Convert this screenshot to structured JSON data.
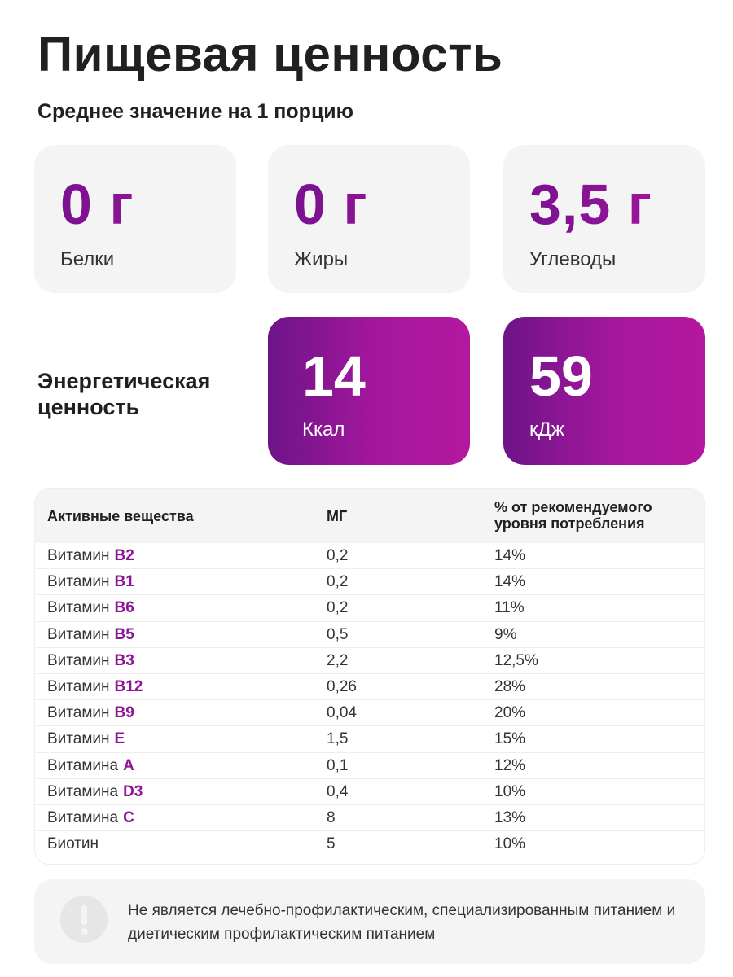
{
  "title": "Пищевая ценность",
  "subtitle": "Среднее значение на 1 порцию",
  "macros": [
    {
      "value": "0 г",
      "label": "Белки"
    },
    {
      "value": "0 г",
      "label": "Жиры"
    },
    {
      "value": "3,5 г",
      "label": "Углеводы"
    }
  ],
  "energy": {
    "label": "Энергетическая ценность",
    "kcal": {
      "value": "14",
      "unit": "Ккал"
    },
    "kj": {
      "value": "59",
      "unit": "кДж"
    }
  },
  "table": {
    "headers": [
      "Активные вещества",
      "МГ",
      "% от рекомендуемого уровня потребления"
    ],
    "rows": [
      {
        "name": "Витамин",
        "code": "B2",
        "mg": "0,2",
        "percent": "14%"
      },
      {
        "name": "Витамин",
        "code": "B1",
        "mg": "0,2",
        "percent": "14%"
      },
      {
        "name": "Витамин",
        "code": "B6",
        "mg": "0,2",
        "percent": "11%"
      },
      {
        "name": "Витамин",
        "code": "B5",
        "mg": "0,5",
        "percent": "9%"
      },
      {
        "name": "Витамин",
        "code": "B3",
        "mg": "2,2",
        "percent": "12,5%"
      },
      {
        "name": "Витамин",
        "code": "B12",
        "mg": "0,26",
        "percent": "28%"
      },
      {
        "name": "Витамин",
        "code": "B9",
        "mg": "0,04",
        "percent": "20%"
      },
      {
        "name": "Витамин",
        "code": "E",
        "mg": "1,5",
        "percent": "15%"
      },
      {
        "name": "Витамина",
        "code": "A",
        "mg": "0,1",
        "percent": "12%"
      },
      {
        "name": "Витамина",
        "code": "D3",
        "mg": "0,4",
        "percent": "10%"
      },
      {
        "name": "Витамина",
        "code": "C",
        "mg": "8",
        "percent": "13%"
      },
      {
        "name": "Биотин",
        "code": "",
        "mg": "5",
        "percent": "10%"
      }
    ]
  },
  "notice": {
    "icon": "exclamation-icon",
    "text": "Не является лечебно-профилактическим, специализированным питанием и диетическим профилактическим питанием"
  },
  "colors": {
    "accent": "#8c1496",
    "gradient_start": "#6e1487",
    "gradient_end": "#b4189f",
    "card_bg": "#f4f4f4",
    "text": "#221f20"
  }
}
